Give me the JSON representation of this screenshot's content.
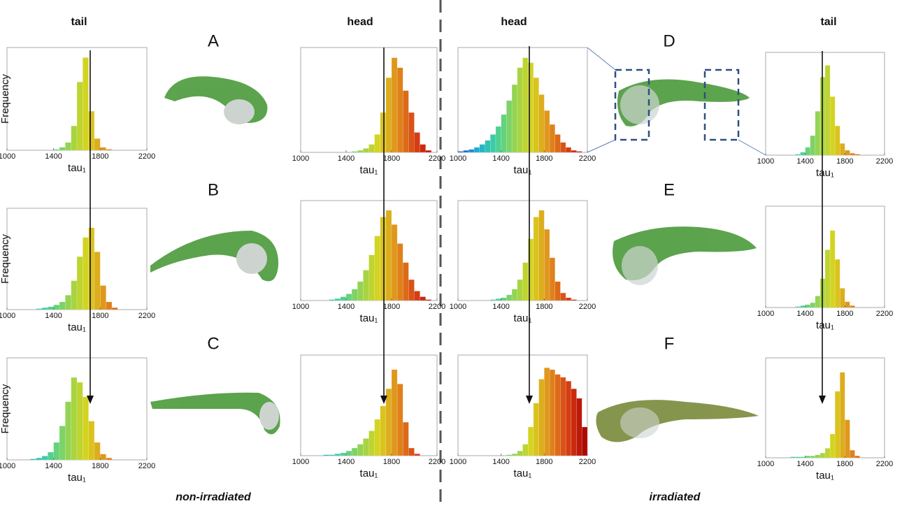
{
  "labels": {
    "columns": [
      "tail",
      "head",
      "head",
      "tail"
    ],
    "panels": [
      "A",
      "B",
      "C",
      "D",
      "E",
      "F"
    ],
    "groups": [
      "non-irradiated",
      "irradiated"
    ]
  },
  "colormap": [
    "#1f3fbf",
    "#1aa9d6",
    "#3fd0a0",
    "#8ed455",
    "#d8d41e",
    "#e0891c",
    "#d63a14",
    "#a80000"
  ],
  "chart_data": [
    {
      "type": "histogram",
      "xlabel": "tau₁",
      "ylabel": "Frequency",
      "xlim": [
        1000,
        2200
      ],
      "ylim": [
        0,
        100
      ],
      "xticks": [
        1000,
        1400,
        1800,
        2200
      ],
      "bins": [
        1000,
        1050,
        1100,
        1150,
        1200,
        1250,
        1300,
        1350,
        1400,
        1450,
        1500,
        1550,
        1600,
        1650,
        1700,
        1750,
        1800,
        1850,
        1900,
        1950,
        2000,
        2050,
        2100,
        2150,
        2200
      ],
      "values": [
        0,
        0,
        0,
        0,
        0,
        0,
        0,
        0,
        1,
        3,
        8,
        25,
        70,
        95,
        40,
        12,
        3,
        1,
        0,
        0,
        0,
        0,
        0,
        0
      ]
    },
    {
      "type": "histogram",
      "xlabel": "tau₁",
      "xlim": [
        1000,
        2200
      ],
      "ylim": [
        0,
        100
      ],
      "xticks": [
        1000,
        1400,
        1800,
        2200
      ],
      "bins": [
        1000,
        1050,
        1100,
        1150,
        1200,
        1250,
        1300,
        1350,
        1400,
        1450,
        1500,
        1550,
        1600,
        1650,
        1700,
        1750,
        1800,
        1850,
        1900,
        1950,
        2000,
        2050,
        2100,
        2150,
        2200
      ],
      "values": [
        0,
        0,
        0,
        0,
        0,
        0,
        0,
        0,
        0,
        1,
        2,
        4,
        8,
        18,
        40,
        75,
        95,
        85,
        62,
        40,
        20,
        8,
        2,
        0
      ]
    },
    {
      "type": "histogram",
      "xlabel": "tau₁",
      "xlim": [
        1000,
        2200
      ],
      "ylim": [
        0,
        100
      ],
      "xticks": [
        1000,
        1400,
        1800,
        2200
      ],
      "bins": [
        1000,
        1050,
        1100,
        1150,
        1200,
        1250,
        1300,
        1350,
        1400,
        1450,
        1500,
        1550,
        1600,
        1650,
        1700,
        1750,
        1800,
        1850,
        1900,
        1950,
        2000,
        2050,
        2100,
        2150,
        2200
      ],
      "values": [
        1,
        2,
        3,
        5,
        8,
        12,
        18,
        26,
        38,
        52,
        68,
        85,
        95,
        90,
        75,
        58,
        42,
        28,
        18,
        10,
        5,
        2,
        1,
        0
      ]
    },
    {
      "type": "histogram",
      "xlabel": "tau₁",
      "xlim": [
        1000,
        2200
      ],
      "ylim": [
        0,
        100
      ],
      "xticks": [
        1000,
        1400,
        1800,
        2200
      ],
      "bins": [
        1000,
        1050,
        1100,
        1150,
        1200,
        1250,
        1300,
        1350,
        1400,
        1450,
        1500,
        1550,
        1600,
        1650,
        1700,
        1750,
        1800,
        1850,
        1900,
        1950,
        2000,
        2050,
        2100,
        2150,
        2200
      ],
      "values": [
        0,
        0,
        0,
        0,
        0,
        0,
        1,
        3,
        8,
        20,
        45,
        80,
        92,
        60,
        30,
        12,
        5,
        2,
        1,
        0,
        0,
        0,
        0,
        0
      ]
    },
    {
      "type": "histogram",
      "xlabel": "tau₁",
      "ylabel": "Frequency",
      "xlim": [
        1000,
        2200
      ],
      "ylim": [
        0,
        100
      ],
      "xticks": [
        1000,
        1400,
        1800,
        2200
      ],
      "bins": [
        1000,
        1050,
        1100,
        1150,
        1200,
        1250,
        1300,
        1350,
        1400,
        1450,
        1500,
        1550,
        1600,
        1650,
        1700,
        1750,
        1800,
        1850,
        1900,
        1950,
        2000,
        2050,
        2100,
        2150,
        2200
      ],
      "values": [
        0,
        0,
        0,
        0,
        0,
        1,
        2,
        3,
        5,
        8,
        15,
        30,
        55,
        75,
        85,
        60,
        25,
        8,
        2,
        0,
        0,
        0,
        0,
        0
      ]
    },
    {
      "type": "histogram",
      "xlabel": "tau₁",
      "xlim": [
        1000,
        2200
      ],
      "ylim": [
        0,
        100
      ],
      "xticks": [
        1000,
        1400,
        1800,
        2200
      ],
      "bins": [
        1000,
        1050,
        1100,
        1150,
        1200,
        1250,
        1300,
        1350,
        1400,
        1450,
        1500,
        1550,
        1600,
        1650,
        1700,
        1750,
        1800,
        1850,
        1900,
        1950,
        2000,
        2050,
        2100,
        2150,
        2200
      ],
      "values": [
        0,
        0,
        0,
        0,
        0,
        1,
        2,
        4,
        7,
        12,
        20,
        32,
        48,
        68,
        88,
        95,
        80,
        60,
        40,
        22,
        10,
        4,
        1,
        0
      ]
    },
    {
      "type": "histogram",
      "xlabel": "tau₁",
      "xlim": [
        1000,
        2200
      ],
      "ylim": [
        0,
        100
      ],
      "xticks": [
        1000,
        1400,
        1800,
        2200
      ],
      "bins": [
        1000,
        1050,
        1100,
        1150,
        1200,
        1250,
        1300,
        1350,
        1400,
        1450,
        1500,
        1550,
        1600,
        1650,
        1700,
        1750,
        1800,
        1850,
        1900,
        1950,
        2000,
        2050,
        2100,
        2150,
        2200
      ],
      "values": [
        0,
        0,
        0,
        0,
        0,
        0,
        1,
        2,
        3,
        6,
        12,
        22,
        40,
        65,
        88,
        95,
        75,
        45,
        20,
        8,
        3,
        1,
        0,
        0
      ]
    },
    {
      "type": "histogram",
      "xlabel": "tau₁",
      "xlim": [
        1000,
        2200
      ],
      "ylim": [
        0,
        100
      ],
      "xticks": [
        1000,
        1400,
        1800,
        2200
      ],
      "bins": [
        1000,
        1050,
        1100,
        1150,
        1200,
        1250,
        1300,
        1350,
        1400,
        1450,
        1500,
        1550,
        1600,
        1650,
        1700,
        1750,
        1800,
        1850,
        1900,
        1950,
        2000,
        2050,
        2100,
        2150,
        2200
      ],
      "values": [
        0,
        0,
        0,
        0,
        0,
        0,
        1,
        2,
        3,
        5,
        12,
        30,
        60,
        80,
        50,
        20,
        6,
        2,
        0,
        0,
        0,
        0,
        0,
        0
      ]
    },
    {
      "type": "histogram",
      "xlabel": "tau₁",
      "ylabel": "Frequency",
      "xlim": [
        1000,
        2200
      ],
      "ylim": [
        0,
        100
      ],
      "xticks": [
        1000,
        1400,
        1800,
        2200
      ],
      "bins": [
        1000,
        1050,
        1100,
        1150,
        1200,
        1250,
        1300,
        1350,
        1400,
        1450,
        1500,
        1550,
        1600,
        1650,
        1700,
        1750,
        1800,
        1850,
        1900,
        1950,
        2000,
        2050,
        2100,
        2150,
        2200
      ],
      "values": [
        0,
        0,
        0,
        0,
        1,
        2,
        4,
        8,
        18,
        35,
        60,
        85,
        80,
        65,
        40,
        18,
        6,
        2,
        0,
        0,
        0,
        0,
        0,
        0
      ]
    },
    {
      "type": "histogram",
      "xlabel": "tau₁",
      "xlim": [
        1000,
        2200
      ],
      "ylim": [
        0,
        100
      ],
      "xticks": [
        1000,
        1400,
        1800,
        2200
      ],
      "bins": [
        1000,
        1050,
        1100,
        1150,
        1200,
        1250,
        1300,
        1350,
        1400,
        1450,
        1500,
        1550,
        1600,
        1650,
        1700,
        1750,
        1800,
        1850,
        1900,
        1950,
        2000,
        2050,
        2100,
        2150,
        2200
      ],
      "values": [
        0,
        0,
        0,
        0,
        1,
        1,
        2,
        3,
        5,
        8,
        12,
        18,
        26,
        38,
        52,
        70,
        90,
        75,
        35,
        8,
        2,
        0,
        0,
        0
      ]
    },
    {
      "type": "histogram",
      "xlabel": "tau₁",
      "xlim": [
        1000,
        2200
      ],
      "ylim": [
        0,
        100
      ],
      "xticks": [
        1000,
        1400,
        1800,
        2200
      ],
      "bins": [
        1000,
        1050,
        1100,
        1150,
        1200,
        1250,
        1300,
        1350,
        1400,
        1450,
        1500,
        1550,
        1600,
        1650,
        1700,
        1750,
        1800,
        1850,
        1900,
        1950,
        2000,
        2050,
        2100,
        2150,
        2200
      ],
      "values": [
        0,
        0,
        0,
        0,
        0,
        0,
        0,
        0,
        0,
        1,
        2,
        5,
        12,
        30,
        55,
        80,
        92,
        90,
        85,
        82,
        78,
        70,
        60,
        30
      ]
    },
    {
      "type": "histogram",
      "xlabel": "tau₁",
      "xlim": [
        1000,
        2200
      ],
      "ylim": [
        0,
        100
      ],
      "xticks": [
        1000,
        1400,
        1800,
        2200
      ],
      "bins": [
        1000,
        1050,
        1100,
        1150,
        1200,
        1250,
        1300,
        1350,
        1400,
        1450,
        1500,
        1550,
        1600,
        1650,
        1700,
        1750,
        1800,
        1850,
        1900,
        1950,
        2000,
        2050,
        2100,
        2150,
        2200
      ],
      "values": [
        0,
        0,
        0,
        0,
        0,
        1,
        1,
        1,
        2,
        2,
        3,
        5,
        10,
        25,
        70,
        90,
        40,
        8,
        2,
        0,
        0,
        0,
        0,
        0
      ]
    }
  ]
}
